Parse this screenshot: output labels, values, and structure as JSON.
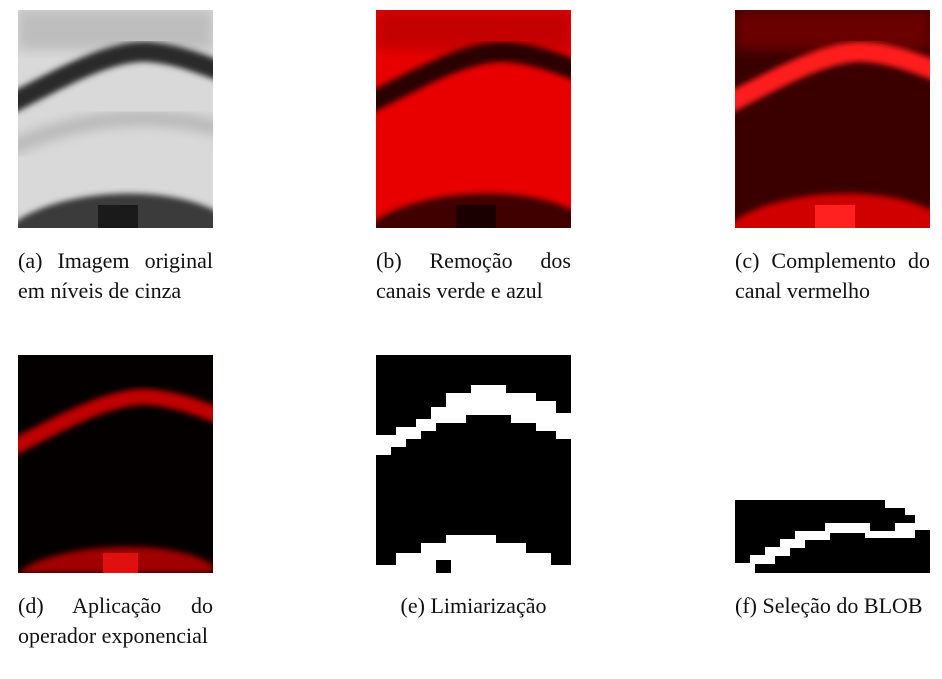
{
  "figure": {
    "subfigures": [
      {
        "label": "(a)",
        "caption": "Imagem original em níveis de cinza"
      },
      {
        "label": "(b)",
        "caption": "Remoção dos canais verde e azul"
      },
      {
        "label": "(c)",
        "caption": "Complemento do canal vermelho"
      },
      {
        "label": "(d)",
        "caption": "Aplicação do operador exponencial"
      },
      {
        "label": "(e)",
        "caption": "Limiarização"
      },
      {
        "label": "(f)",
        "caption": "Seleção do BLOB"
      }
    ]
  }
}
